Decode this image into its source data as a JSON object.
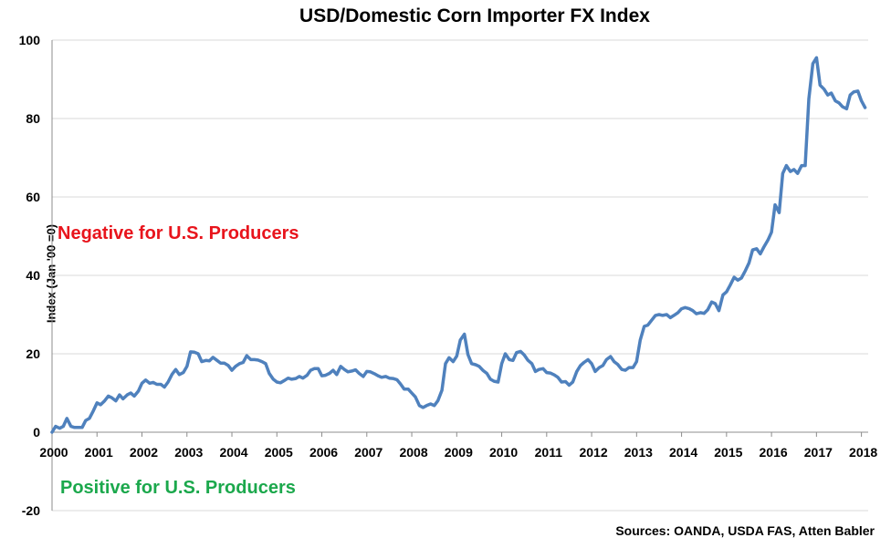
{
  "colors": {
    "line": "#4F81BD",
    "gridline": "#D9D9D9",
    "negative_text": "#E8141C",
    "positive_text": "#1BA84C"
  },
  "annotations": {
    "negative": "Negative for U.S. Producers",
    "positive": "Positive for U.S. Producers",
    "source": "Sources: OANDA, USDA FAS, Atten Babler"
  },
  "chart_data": {
    "type": "line",
    "title": "USD/Domestic Corn Importer FX Index",
    "xlabel": "",
    "ylabel": "Index (Jan '00 =0)",
    "ylim": [
      -20,
      100
    ],
    "xlim": [
      2000,
      2018.15
    ],
    "yticks": [
      -20,
      0,
      20,
      40,
      60,
      80,
      100
    ],
    "xticks": [
      "2000",
      "2001",
      "2002",
      "2003",
      "2004",
      "2005",
      "2006",
      "2007",
      "2008",
      "2009",
      "2010",
      "2011",
      "2012",
      "2013",
      "2014",
      "2015",
      "2016",
      "2017",
      "2018"
    ],
    "grid": "horizontal",
    "legend": "none",
    "series": [
      {
        "x": [
          2000.0,
          2000.08,
          2000.17,
          2000.25,
          2000.33,
          2000.42,
          2000.5,
          2000.58,
          2000.67,
          2000.75,
          2000.83,
          2000.92,
          2001.0,
          2001.08,
          2001.17,
          2001.25,
          2001.33,
          2001.42,
          2001.5,
          2001.58,
          2001.67,
          2001.75,
          2001.83,
          2001.92,
          2002.0,
          2002.08,
          2002.17,
          2002.25,
          2002.33,
          2002.42,
          2002.5,
          2002.58,
          2002.67,
          2002.75,
          2002.83,
          2002.92,
          2003.0,
          2003.08,
          2003.17,
          2003.25,
          2003.33,
          2003.42,
          2003.5,
          2003.58,
          2003.67,
          2003.75,
          2003.83,
          2003.92,
          2004.0,
          2004.08,
          2004.17,
          2004.25,
          2004.33,
          2004.42,
          2004.5,
          2004.58,
          2004.67,
          2004.75,
          2004.83,
          2004.92,
          2005.0,
          2005.08,
          2005.17,
          2005.25,
          2005.33,
          2005.42,
          2005.5,
          2005.58,
          2005.67,
          2005.75,
          2005.83,
          2005.92,
          2006.0,
          2006.08,
          2006.17,
          2006.25,
          2006.33,
          2006.42,
          2006.5,
          2006.58,
          2006.67,
          2006.75,
          2006.83,
          2006.92,
          2007.0,
          2007.08,
          2007.17,
          2007.25,
          2007.33,
          2007.42,
          2007.5,
          2007.58,
          2007.67,
          2007.75,
          2007.83,
          2007.92,
          2008.0,
          2008.08,
          2008.17,
          2008.25,
          2008.33,
          2008.42,
          2008.5,
          2008.58,
          2008.67,
          2008.75,
          2008.83,
          2008.92,
          2009.0,
          2009.08,
          2009.17,
          2009.25,
          2009.33,
          2009.42,
          2009.5,
          2009.58,
          2009.67,
          2009.75,
          2009.83,
          2009.92,
          2010.0,
          2010.08,
          2010.17,
          2010.25,
          2010.33,
          2010.42,
          2010.5,
          2010.58,
          2010.67,
          2010.75,
          2010.83,
          2010.92,
          2011.0,
          2011.08,
          2011.17,
          2011.25,
          2011.33,
          2011.42,
          2011.5,
          2011.58,
          2011.67,
          2011.75,
          2011.83,
          2011.92,
          2012.0,
          2012.08,
          2012.17,
          2012.25,
          2012.33,
          2012.42,
          2012.5,
          2012.58,
          2012.67,
          2012.75,
          2012.83,
          2012.92,
          2013.0,
          2013.08,
          2013.17,
          2013.25,
          2013.33,
          2013.42,
          2013.5,
          2013.58,
          2013.67,
          2013.75,
          2013.83,
          2013.92,
          2014.0,
          2014.08,
          2014.17,
          2014.25,
          2014.33,
          2014.42,
          2014.5,
          2014.58,
          2014.67,
          2014.75,
          2014.83,
          2014.92,
          2015.0,
          2015.08,
          2015.17,
          2015.25,
          2015.33,
          2015.42,
          2015.5,
          2015.58,
          2015.67,
          2015.75,
          2015.83,
          2015.92,
          2016.0,
          2016.08,
          2016.17,
          2016.25,
          2016.33,
          2016.42,
          2016.5,
          2016.58,
          2016.67,
          2016.75,
          2016.83,
          2016.92,
          2017.0,
          2017.08,
          2017.17,
          2017.25,
          2017.33,
          2017.42,
          2017.5,
          2017.58,
          2017.67,
          2017.75,
          2017.83,
          2017.92,
          2018.0,
          2018.08
        ],
        "values": [
          0,
          1.5,
          1,
          1.5,
          3.5,
          1.5,
          1.2,
          1.2,
          1.2,
          3,
          3.5,
          5.5,
          7.5,
          7,
          8,
          9.2,
          8.8,
          8,
          9.5,
          8.5,
          9.5,
          10,
          9.2,
          10.5,
          12.5,
          13.3,
          12.5,
          12.7,
          12.2,
          12.2,
          11.5,
          12.8,
          14.8,
          16,
          14.7,
          15.2,
          16.8,
          20.5,
          20.4,
          20,
          18,
          18.3,
          18.2,
          19.1,
          18.3,
          17.6,
          17.6,
          17,
          15.8,
          16.8,
          17.5,
          17.8,
          19.5,
          18.5,
          18.5,
          18.4,
          18,
          17.5,
          15,
          13.5,
          12.8,
          12.6,
          13.2,
          13.8,
          13.5,
          13.7,
          14.2,
          13.8,
          14.5,
          15.8,
          16.2,
          16.2,
          14.4,
          14.5,
          15,
          15.8,
          14.7,
          16.8,
          16,
          15.4,
          15.6,
          15.9,
          15,
          14.2,
          15.5,
          15.4,
          14.9,
          14.4,
          14,
          14.2,
          13.8,
          13.7,
          13.4,
          12.3,
          11,
          11,
          10,
          9,
          6.8,
          6.3,
          6.8,
          7.2,
          6.8,
          8,
          10.7,
          17.5,
          19,
          18,
          19.4,
          23.5,
          25,
          19.8,
          17.5,
          17.2,
          16.8,
          15.8,
          15,
          13.5,
          13,
          12.8,
          17.5,
          20,
          18.5,
          18.3,
          20.3,
          20.6,
          19.7,
          18.4,
          17.5,
          15.5,
          16,
          16.2,
          15.2,
          15.1,
          14.6,
          14,
          12.8,
          12.9,
          12,
          12.8,
          15.5,
          17,
          17.8,
          18.5,
          17.5,
          15.5,
          16.5,
          17,
          18.5,
          19.3,
          18,
          17.3,
          16,
          15.8,
          16.5,
          16.5,
          18,
          23.5,
          27,
          27.3,
          28.5,
          29.8,
          30,
          29.8,
          30,
          29.2,
          29.8,
          30.5,
          31.5,
          31.8,
          31.5,
          31,
          30.2,
          30.5,
          30.3,
          31.2,
          33.2,
          32.8,
          31,
          35,
          35.8,
          37.5,
          39.5,
          38.8,
          39.3,
          41.2,
          43.2,
          46.5,
          46.8,
          45.5,
          47.2,
          49,
          51,
          58,
          56,
          66,
          68,
          66.5,
          67,
          66,
          68,
          68,
          85,
          94,
          95.5,
          88.5,
          87.5,
          86,
          86.5,
          84.5,
          84,
          83,
          82.5,
          86,
          86.8,
          87,
          84.5,
          82.8
        ]
      }
    ]
  }
}
